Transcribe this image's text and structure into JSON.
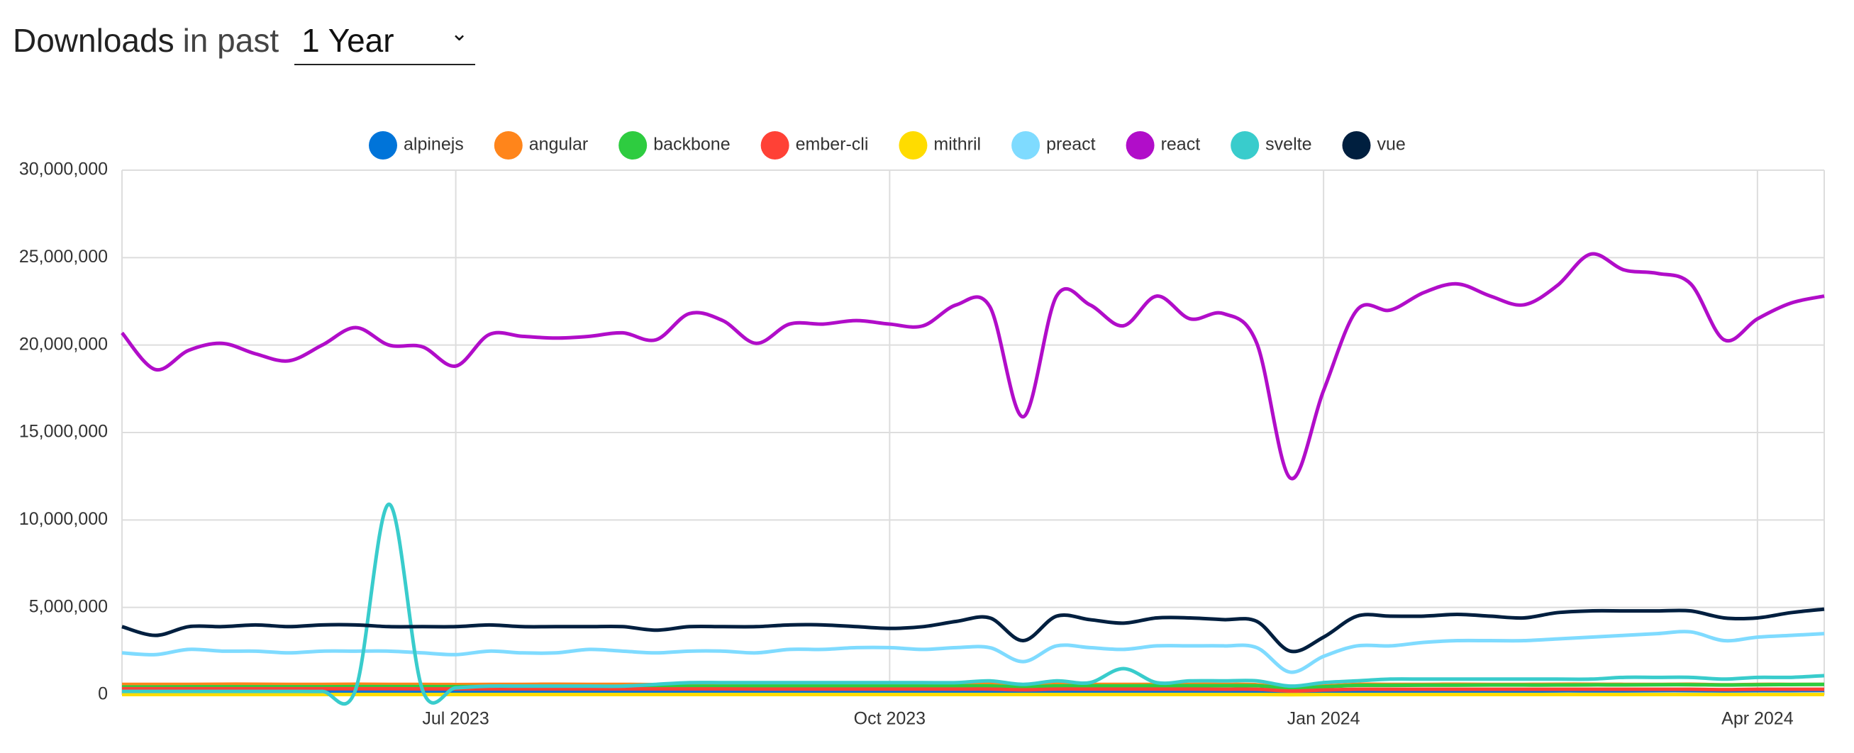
{
  "header": {
    "title": "Downloads",
    "subtitle": "in past",
    "select": "1 Year"
  },
  "chart_data": {
    "type": "line",
    "grid": true,
    "legend": "top",
    "categories": [
      null,
      null,
      null,
      null,
      null,
      null,
      null,
      null,
      null,
      null,
      "Jul 2023",
      null,
      null,
      null,
      null,
      null,
      null,
      null,
      null,
      null,
      null,
      null,
      null,
      "Oct 2023",
      null,
      null,
      null,
      null,
      null,
      null,
      null,
      null,
      null,
      null,
      null,
      null,
      "Jan 2024",
      null,
      null,
      null,
      null,
      null,
      null,
      null,
      null,
      null,
      null,
      null,
      null,
      "Apr 2024",
      null,
      null
    ],
    "ylim": [
      0,
      30000000
    ],
    "yticks": [
      0,
      {
        "value": 5000000,
        "label": "5,000,000"
      },
      {
        "value": 10000000,
        "label": "10,000,000"
      },
      {
        "value": 15000000,
        "label": "15,000,000"
      },
      {
        "value": 20000000,
        "label": "20,000,000"
      },
      {
        "value": 25000000,
        "label": "25,000,000"
      },
      {
        "value": 30000000,
        "label": "30,000,000"
      }
    ],
    "series": [
      {
        "name": "alpinejs",
        "color": "#0074D9",
        "values": [
          150000,
          150000,
          150000,
          150000,
          160000,
          160000,
          160000,
          160000,
          160000,
          160000,
          170000,
          170000,
          170000,
          170000,
          170000,
          170000,
          180000,
          180000,
          180000,
          180000,
          180000,
          190000,
          190000,
          190000,
          190000,
          190000,
          200000,
          170000,
          200000,
          200000,
          200000,
          200000,
          200000,
          200000,
          200000,
          120000,
          170000,
          210000,
          210000,
          220000,
          220000,
          220000,
          220000,
          230000,
          230000,
          230000,
          240000,
          240000,
          230000,
          240000,
          240000,
          250000
        ]
      },
      {
        "name": "angular",
        "color": "#FF851B",
        "values": [
          600000,
          600000,
          600000,
          610000,
          610000,
          600000,
          600000,
          610000,
          600000,
          600000,
          590000,
          600000,
          600000,
          610000,
          600000,
          600000,
          590000,
          600000,
          600000,
          600000,
          600000,
          600000,
          600000,
          600000,
          600000,
          600000,
          610000,
          500000,
          610000,
          600000,
          600000,
          600000,
          600000,
          600000,
          580000,
          400000,
          500000,
          600000,
          600000,
          600000,
          610000,
          600000,
          600000,
          610000,
          610000,
          600000,
          600000,
          610000,
          580000,
          600000,
          600000,
          600000
        ]
      },
      {
        "name": "backbone",
        "color": "#2ECC40",
        "values": [
          450000,
          450000,
          460000,
          460000,
          460000,
          460000,
          460000,
          470000,
          470000,
          470000,
          470000,
          480000,
          480000,
          480000,
          480000,
          480000,
          490000,
          490000,
          490000,
          500000,
          500000,
          500000,
          500000,
          500000,
          500000,
          510000,
          510000,
          450000,
          510000,
          510000,
          510000,
          520000,
          520000,
          520000,
          520000,
          380000,
          460000,
          540000,
          540000,
          550000,
          550000,
          560000,
          560000,
          560000,
          570000,
          570000,
          580000,
          580000,
          560000,
          580000,
          590000,
          600000
        ]
      },
      {
        "name": "ember-cli",
        "color": "#FF4136",
        "values": [
          350000,
          350000,
          350000,
          350000,
          350000,
          350000,
          350000,
          350000,
          350000,
          340000,
          340000,
          340000,
          340000,
          340000,
          340000,
          340000,
          340000,
          340000,
          340000,
          330000,
          330000,
          330000,
          330000,
          330000,
          330000,
          330000,
          330000,
          290000,
          330000,
          330000,
          330000,
          330000,
          330000,
          320000,
          320000,
          220000,
          280000,
          320000,
          320000,
          320000,
          320000,
          320000,
          320000,
          320000,
          320000,
          320000,
          320000,
          320000,
          300000,
          320000,
          320000,
          320000
        ]
      },
      {
        "name": "mithril",
        "color": "#FFDC00",
        "values": [
          20000,
          20000,
          20000,
          20000,
          20000,
          20000,
          20000,
          20000,
          20000,
          20000,
          20000,
          20000,
          20000,
          20000,
          20000,
          20000,
          20000,
          20000,
          20000,
          20000,
          20000,
          20000,
          20000,
          20000,
          20000,
          20000,
          20000,
          20000,
          20000,
          20000,
          20000,
          20000,
          20000,
          20000,
          20000,
          10000,
          20000,
          20000,
          20000,
          20000,
          20000,
          20000,
          20000,
          20000,
          20000,
          20000,
          20000,
          20000,
          20000,
          20000,
          20000,
          20000
        ]
      },
      {
        "name": "preact",
        "color": "#7FDBFF",
        "values": [
          2400000,
          2300000,
          2600000,
          2500000,
          2500000,
          2400000,
          2500000,
          2500000,
          2500000,
          2400000,
          2300000,
          2500000,
          2400000,
          2400000,
          2600000,
          2500000,
          2400000,
          2500000,
          2500000,
          2400000,
          2600000,
          2600000,
          2700000,
          2700000,
          2600000,
          2700000,
          2700000,
          1900000,
          2800000,
          2700000,
          2600000,
          2800000,
          2800000,
          2800000,
          2700000,
          1300000,
          2200000,
          2800000,
          2800000,
          3000000,
          3100000,
          3100000,
          3100000,
          3200000,
          3300000,
          3400000,
          3500000,
          3600000,
          3100000,
          3300000,
          3400000,
          3500000
        ]
      },
      {
        "name": "react",
        "color": "#B10DC9",
        "values": [
          20700000,
          18600000,
          19700000,
          20100000,
          19500000,
          19100000,
          20000000,
          21000000,
          20000000,
          19900000,
          18800000,
          20600000,
          20500000,
          20400000,
          20500000,
          20700000,
          20300000,
          21800000,
          21400000,
          20100000,
          21200000,
          21200000,
          21400000,
          21200000,
          21100000,
          22300000,
          22200000,
          15900000,
          22800000,
          22300000,
          21100000,
          22800000,
          21500000,
          21800000,
          20100000,
          12400000,
          17400000,
          22000000,
          22000000,
          23000000,
          23500000,
          22800000,
          22300000,
          23400000,
          25200000,
          24300000,
          24100000,
          23500000,
          20300000,
          21500000,
          22400000,
          22800000
        ]
      },
      {
        "name": "svelte",
        "color": "#39CCCC",
        "values": [
          200000,
          200000,
          200000,
          200000,
          200000,
          200000,
          200000,
          300000,
          10900000,
          300000,
          400000,
          500000,
          500000,
          500000,
          500000,
          500000,
          600000,
          700000,
          700000,
          700000,
          700000,
          700000,
          700000,
          700000,
          700000,
          700000,
          800000,
          600000,
          800000,
          700000,
          1500000,
          700000,
          800000,
          800000,
          800000,
          500000,
          700000,
          800000,
          900000,
          900000,
          900000,
          900000,
          900000,
          900000,
          900000,
          1000000,
          1000000,
          1000000,
          900000,
          1000000,
          1000000,
          1100000
        ]
      },
      {
        "name": "vue",
        "color": "#001F3F",
        "values": [
          3900000,
          3400000,
          3900000,
          3900000,
          4000000,
          3900000,
          4000000,
          4000000,
          3900000,
          3900000,
          3900000,
          4000000,
          3900000,
          3900000,
          3900000,
          3900000,
          3700000,
          3900000,
          3900000,
          3900000,
          4000000,
          4000000,
          3900000,
          3800000,
          3900000,
          4200000,
          4400000,
          3100000,
          4500000,
          4300000,
          4100000,
          4400000,
          4400000,
          4300000,
          4200000,
          2500000,
          3300000,
          4500000,
          4500000,
          4500000,
          4600000,
          4500000,
          4400000,
          4700000,
          4800000,
          4800000,
          4800000,
          4800000,
          4400000,
          4400000,
          4700000,
          4900000
        ]
      }
    ]
  }
}
